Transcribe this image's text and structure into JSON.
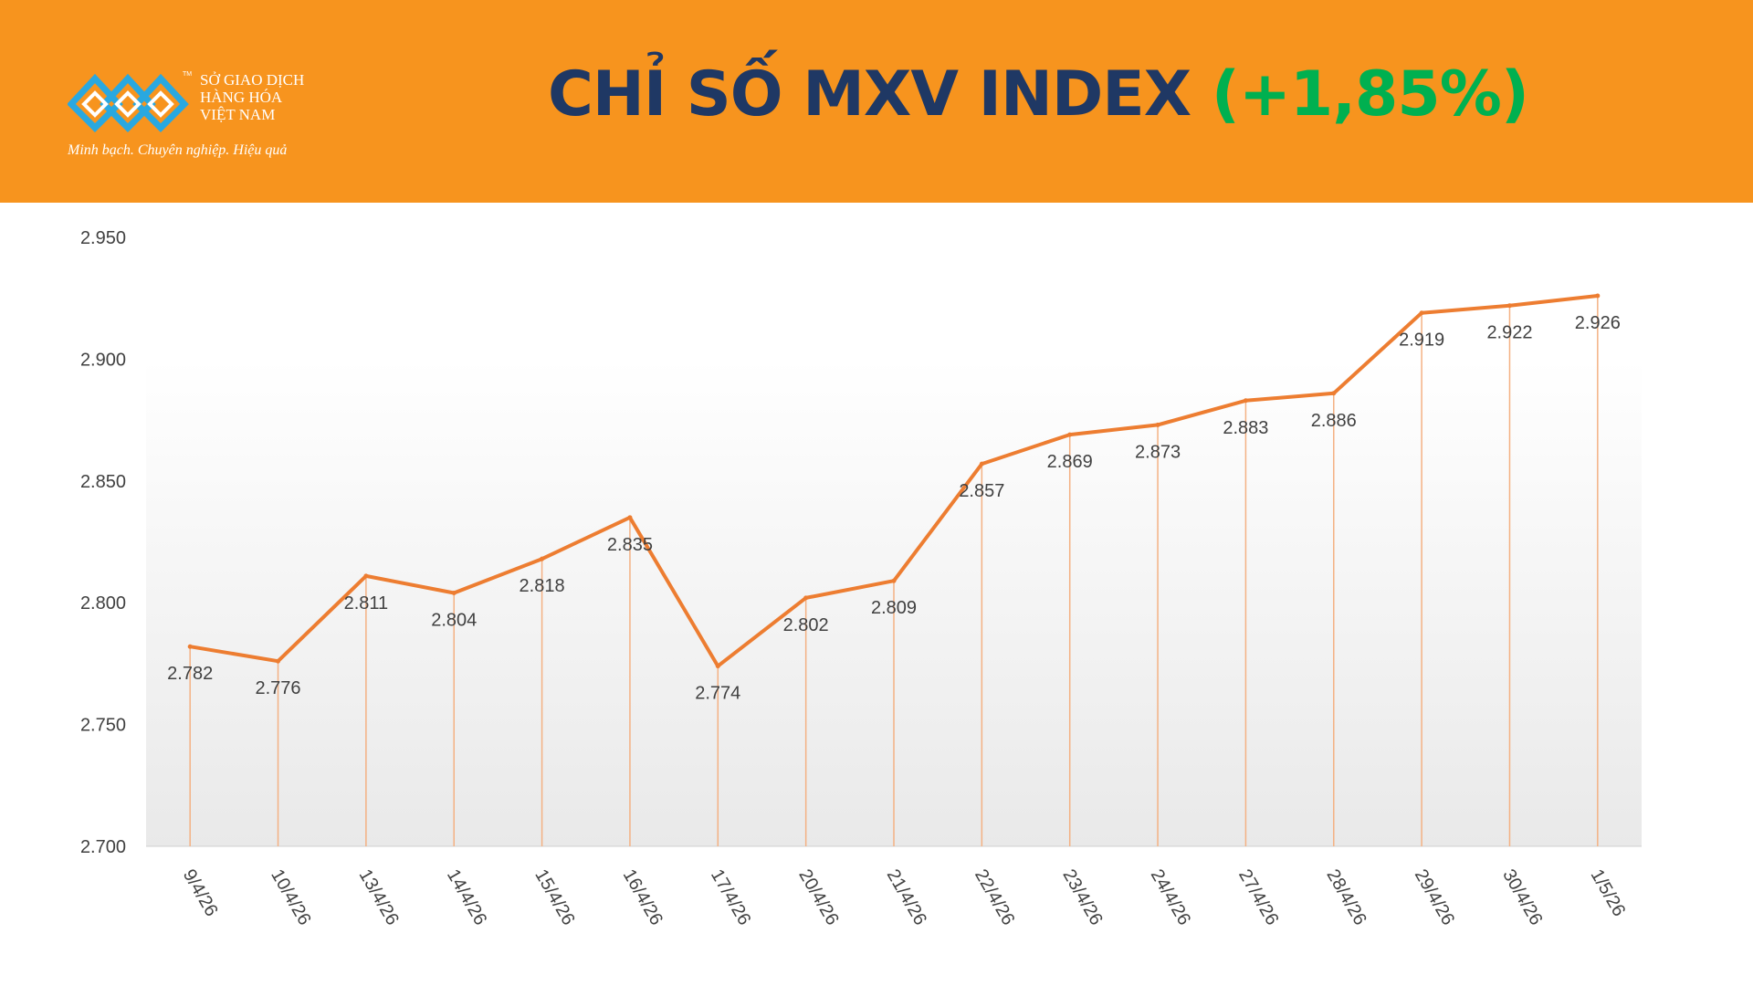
{
  "header": {
    "title_main": "CHỈ SỐ MXV INDEX ",
    "title_change": "(+1,85%)",
    "logo": {
      "tm": "TM",
      "line1": "SỞ GIAO DỊCH",
      "line2": "HÀNG HÓA",
      "line3": "VIỆT NAM",
      "slogan": "Minh bạch. Chuyên nghiệp. Hiệu quả"
    }
  },
  "colors": {
    "header_bg": "#F7941E",
    "title": "#1F3864",
    "change_positive": "#00B050",
    "line": "#ED7D31",
    "drop_lines": "#F4B183",
    "logo_blue": "#29A8E0"
  },
  "chart_data": {
    "type": "line",
    "categories": [
      "9/4/26",
      "10/4/26",
      "13/4/26",
      "14/4/26",
      "15/4/26",
      "16/4/26",
      "17/4/26",
      "20/4/26",
      "21/4/26",
      "22/4/26",
      "23/4/26",
      "24/4/26",
      "27/4/26",
      "28/4/26",
      "29/4/26",
      "30/4/26",
      "1/5/26"
    ],
    "values": [
      2782,
      2776,
      2811,
      2804,
      2818,
      2835,
      2774,
      2802,
      2809,
      2857,
      2869,
      2873,
      2883,
      2886,
      2919,
      2922,
      2926
    ],
    "value_labels": [
      "2.782",
      "2.776",
      "2.811",
      "2.804",
      "2.818",
      "2.835",
      "2.774",
      "2.802",
      "2.809",
      "2.857",
      "2.869",
      "2.873",
      "2.883",
      "2.886",
      "2.919",
      "2.922",
      "2.926"
    ],
    "ylim": [
      2700,
      2950
    ],
    "yticks": [
      2700,
      2750,
      2800,
      2850,
      2900,
      2950
    ],
    "ytick_labels": [
      "2.700",
      "2.750",
      "2.800",
      "2.850",
      "2.900",
      "2.950"
    ],
    "drop_lines": true,
    "legend": "none"
  }
}
